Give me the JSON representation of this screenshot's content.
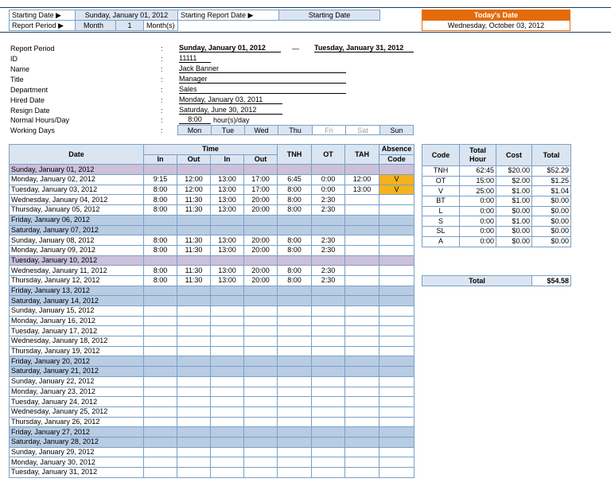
{
  "header": {
    "starting_date_label": "Starting Date ▶",
    "starting_date_value": "Sunday, January 01, 2012",
    "starting_report_date_label": "Starting Report Date ▶",
    "starting_report_date_value": "Starting Date",
    "report_period_label": "Report Period ▶",
    "report_period_unit": "Month",
    "report_period_count": "1",
    "report_period_suffix": "Month(s)",
    "today_label": "Today's Date",
    "today_value": "Wednesday, October 03, 2012",
    "today_color": "#e46c0a"
  },
  "info": {
    "report_period_label": "Report Period",
    "report_period_from": "Sunday, January 01, 2012",
    "report_period_dash": "—",
    "report_period_to": "Tuesday, January 31, 2012",
    "id_label": "ID",
    "id_value": "11111",
    "name_label": "Name",
    "name_value": "Jack Banner",
    "title_label": "Title",
    "title_value": "Manager",
    "department_label": "Department",
    "department_value": "Sales",
    "hired_label": "Hired Date",
    "hired_value": "Monday, January 03, 2011",
    "resign_label": "Resign Date",
    "resign_value": "Saturday, June 30, 2012",
    "hours_label": "Normal Hours/Day",
    "hours_value": "8:00",
    "hours_unit": "hour(s)/day",
    "working_label": "Working Days",
    "colon": ":",
    "days": [
      "Mon",
      "Tue",
      "Wed",
      "Thu",
      "Fri",
      "Sat",
      "Sun"
    ]
  },
  "table": {
    "col_date": "Date",
    "col_time": "Time",
    "col_in": "In",
    "col_out": "Out",
    "col_tnh": "TNH",
    "col_ot": "OT",
    "col_tah": "TAH",
    "col_absence": "Absence",
    "col_code": "Code",
    "weekend_color": "#b8cce4",
    "holiday_color": "#ccc0da",
    "absence_color": "#f5b21d",
    "rows": [
      {
        "date": "Sunday, January 01, 2012",
        "in1": "",
        "out1": "",
        "in2": "",
        "out2": "",
        "tnh": "",
        "ot": "",
        "tah": "",
        "code": "",
        "type": "hol"
      },
      {
        "date": "Monday, January 02, 2012",
        "in1": "9:15",
        "out1": "12:00",
        "in2": "13:00",
        "out2": "17:00",
        "tnh": "6:45",
        "ot": "0:00",
        "tah": "12:00",
        "code": "V",
        "type": ""
      },
      {
        "date": "Tuesday, January 03, 2012",
        "in1": "8:00",
        "out1": "12:00",
        "in2": "13:00",
        "out2": "17:00",
        "tnh": "8:00",
        "ot": "0:00",
        "tah": "13:00",
        "code": "V",
        "type": ""
      },
      {
        "date": "Wednesday, January 04, 2012",
        "in1": "8:00",
        "out1": "11:30",
        "in2": "13:00",
        "out2": "20:00",
        "tnh": "8:00",
        "ot": "2:30",
        "tah": "",
        "code": "",
        "type": ""
      },
      {
        "date": "Thursday, January 05, 2012",
        "in1": "8:00",
        "out1": "11:30",
        "in2": "13:00",
        "out2": "20:00",
        "tnh": "8:00",
        "ot": "2:30",
        "tah": "",
        "code": "",
        "type": ""
      },
      {
        "date": "Friday, January 06, 2012",
        "in1": "",
        "out1": "",
        "in2": "",
        "out2": "",
        "tnh": "",
        "ot": "",
        "tah": "",
        "code": "",
        "type": "wk"
      },
      {
        "date": "Saturday, January 07, 2012",
        "in1": "",
        "out1": "",
        "in2": "",
        "out2": "",
        "tnh": "",
        "ot": "",
        "tah": "",
        "code": "",
        "type": "wk"
      },
      {
        "date": "Sunday, January 08, 2012",
        "in1": "8:00",
        "out1": "11:30",
        "in2": "13:00",
        "out2": "20:00",
        "tnh": "8:00",
        "ot": "2:30",
        "tah": "",
        "code": "",
        "type": ""
      },
      {
        "date": "Monday, January 09, 2012",
        "in1": "8:00",
        "out1": "11:30",
        "in2": "13:00",
        "out2": "20:00",
        "tnh": "8:00",
        "ot": "2:30",
        "tah": "",
        "code": "",
        "type": ""
      },
      {
        "date": "Tuesday, January 10, 2012",
        "in1": "",
        "out1": "",
        "in2": "",
        "out2": "",
        "tnh": "",
        "ot": "",
        "tah": "",
        "code": "",
        "type": "hol"
      },
      {
        "date": "Wednesday, January 11, 2012",
        "in1": "8:00",
        "out1": "11:30",
        "in2": "13:00",
        "out2": "20:00",
        "tnh": "8:00",
        "ot": "2:30",
        "tah": "",
        "code": "",
        "type": ""
      },
      {
        "date": "Thursday, January 12, 2012",
        "in1": "8:00",
        "out1": "11:30",
        "in2": "13:00",
        "out2": "20:00",
        "tnh": "8:00",
        "ot": "2:30",
        "tah": "",
        "code": "",
        "type": ""
      },
      {
        "date": "Friday, January 13, 2012",
        "in1": "",
        "out1": "",
        "in2": "",
        "out2": "",
        "tnh": "",
        "ot": "",
        "tah": "",
        "code": "",
        "type": "wk"
      },
      {
        "date": "Saturday, January 14, 2012",
        "in1": "",
        "out1": "",
        "in2": "",
        "out2": "",
        "tnh": "",
        "ot": "",
        "tah": "",
        "code": "",
        "type": "wk"
      },
      {
        "date": "Sunday, January 15, 2012",
        "in1": "",
        "out1": "",
        "in2": "",
        "out2": "",
        "tnh": "",
        "ot": "",
        "tah": "",
        "code": "",
        "type": ""
      },
      {
        "date": "Monday, January 16, 2012",
        "in1": "",
        "out1": "",
        "in2": "",
        "out2": "",
        "tnh": "",
        "ot": "",
        "tah": "",
        "code": "",
        "type": ""
      },
      {
        "date": "Tuesday, January 17, 2012",
        "in1": "",
        "out1": "",
        "in2": "",
        "out2": "",
        "tnh": "",
        "ot": "",
        "tah": "",
        "code": "",
        "type": ""
      },
      {
        "date": "Wednesday, January 18, 2012",
        "in1": "",
        "out1": "",
        "in2": "",
        "out2": "",
        "tnh": "",
        "ot": "",
        "tah": "",
        "code": "",
        "type": ""
      },
      {
        "date": "Thursday, January 19, 2012",
        "in1": "",
        "out1": "",
        "in2": "",
        "out2": "",
        "tnh": "",
        "ot": "",
        "tah": "",
        "code": "",
        "type": ""
      },
      {
        "date": "Friday, January 20, 2012",
        "in1": "",
        "out1": "",
        "in2": "",
        "out2": "",
        "tnh": "",
        "ot": "",
        "tah": "",
        "code": "",
        "type": "wk"
      },
      {
        "date": "Saturday, January 21, 2012",
        "in1": "",
        "out1": "",
        "in2": "",
        "out2": "",
        "tnh": "",
        "ot": "",
        "tah": "",
        "code": "",
        "type": "wk"
      },
      {
        "date": "Sunday, January 22, 2012",
        "in1": "",
        "out1": "",
        "in2": "",
        "out2": "",
        "tnh": "",
        "ot": "",
        "tah": "",
        "code": "",
        "type": ""
      },
      {
        "date": "Monday, January 23, 2012",
        "in1": "",
        "out1": "",
        "in2": "",
        "out2": "",
        "tnh": "",
        "ot": "",
        "tah": "",
        "code": "",
        "type": ""
      },
      {
        "date": "Tuesday, January 24, 2012",
        "in1": "",
        "out1": "",
        "in2": "",
        "out2": "",
        "tnh": "",
        "ot": "",
        "tah": "",
        "code": "",
        "type": ""
      },
      {
        "date": "Wednesday, January 25, 2012",
        "in1": "",
        "out1": "",
        "in2": "",
        "out2": "",
        "tnh": "",
        "ot": "",
        "tah": "",
        "code": "",
        "type": ""
      },
      {
        "date": "Thursday, January 26, 2012",
        "in1": "",
        "out1": "",
        "in2": "",
        "out2": "",
        "tnh": "",
        "ot": "",
        "tah": "",
        "code": "",
        "type": ""
      },
      {
        "date": "Friday, January 27, 2012",
        "in1": "",
        "out1": "",
        "in2": "",
        "out2": "",
        "tnh": "",
        "ot": "",
        "tah": "",
        "code": "",
        "type": "wk"
      },
      {
        "date": "Saturday, January 28, 2012",
        "in1": "",
        "out1": "",
        "in2": "",
        "out2": "",
        "tnh": "",
        "ot": "",
        "tah": "",
        "code": "",
        "type": "wk"
      },
      {
        "date": "Sunday, January 29, 2012",
        "in1": "",
        "out1": "",
        "in2": "",
        "out2": "",
        "tnh": "",
        "ot": "",
        "tah": "",
        "code": "",
        "type": ""
      },
      {
        "date": "Monday, January 30, 2012",
        "in1": "",
        "out1": "",
        "in2": "",
        "out2": "",
        "tnh": "",
        "ot": "",
        "tah": "",
        "code": "",
        "type": ""
      },
      {
        "date": "Tuesday, January 31, 2012",
        "in1": "",
        "out1": "",
        "in2": "",
        "out2": "",
        "tnh": "",
        "ot": "",
        "tah": "",
        "code": "",
        "type": ""
      }
    ]
  },
  "summary": {
    "col_code": "Code",
    "col_total_hour_1": "Total",
    "col_total_hour_2": "Hour",
    "col_cost": "Cost",
    "col_total": "Total",
    "rows": [
      {
        "code": "TNH",
        "hours": "62:45",
        "cost": "$20.00",
        "total": "$52.29"
      },
      {
        "code": "OT",
        "hours": "15:00",
        "cost": "$2.00",
        "total": "$1.25"
      },
      {
        "code": "V",
        "hours": "25:00",
        "cost": "$1.00",
        "total": "$1.04"
      },
      {
        "code": "BT",
        "hours": "0:00",
        "cost": "$1.00",
        "total": "$0.00"
      },
      {
        "code": "L",
        "hours": "0:00",
        "cost": "$0.00",
        "total": "$0.00"
      },
      {
        "code": "S",
        "hours": "0:00",
        "cost": "$1.00",
        "total": "$0.00"
      },
      {
        "code": "SL",
        "hours": "0:00",
        "cost": "$0.00",
        "total": "$0.00"
      },
      {
        "code": "A",
        "hours": "0:00",
        "cost": "$0.00",
        "total": "$0.00"
      }
    ],
    "grand_total_label": "Total",
    "grand_total_value": "$54.58"
  }
}
